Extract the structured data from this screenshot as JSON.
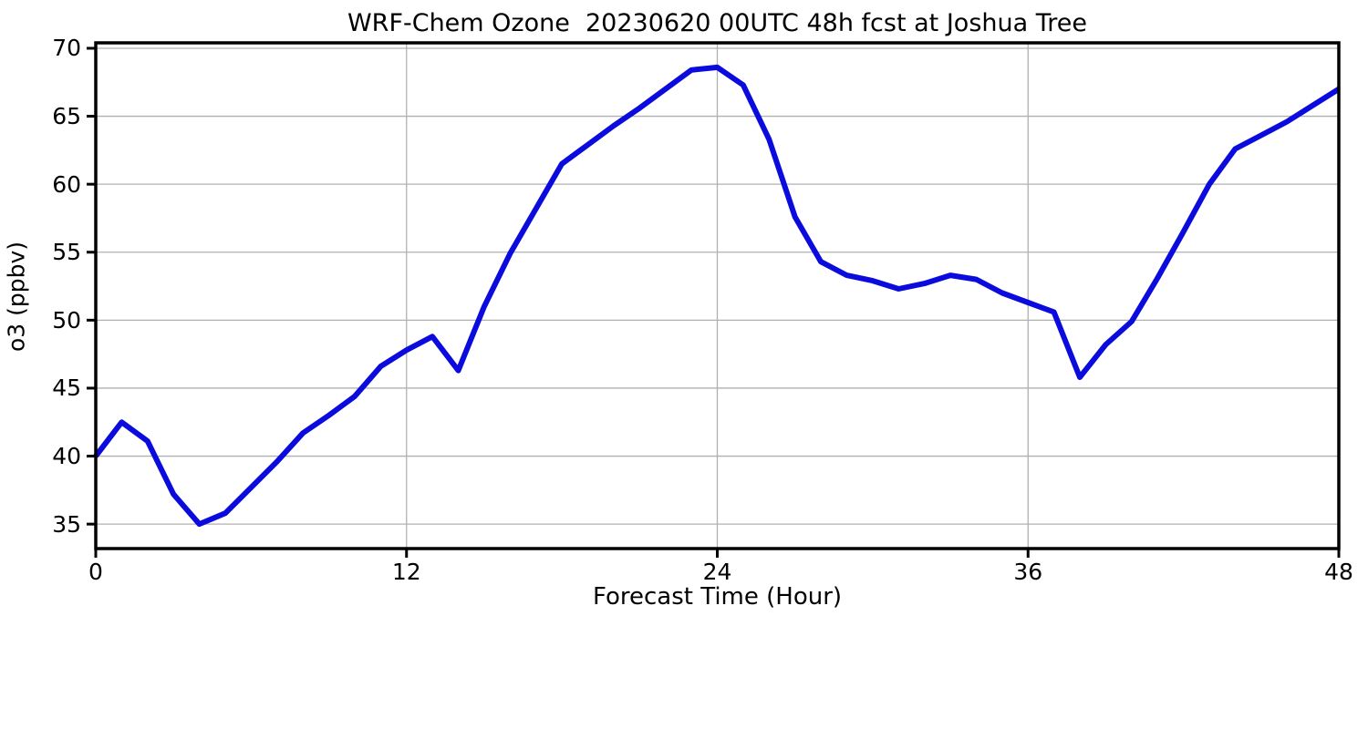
{
  "figure": {
    "title": "WRF-Chem Ozone  20230620 00UTC 48h fcst at Joshua Tree",
    "xlabel": "Forecast Time (Hour)",
    "ylabel": "o3 (ppbv)"
  },
  "chart_data": {
    "type": "line",
    "title": "WRF-Chem Ozone  20230620 00UTC 48h fcst at Joshua Tree",
    "xlabel": "Forecast Time (Hour)",
    "ylabel": "o3 (ppbv)",
    "series": [
      {
        "name": "o3 forecast",
        "x": [
          0,
          1,
          2,
          3,
          4,
          5,
          6,
          7,
          8,
          9,
          10,
          11,
          12,
          13,
          14,
          15,
          16,
          17,
          18,
          19,
          20,
          21,
          22,
          23,
          24,
          25,
          26,
          27,
          28,
          29,
          30,
          31,
          32,
          33,
          34,
          35,
          36,
          37,
          38,
          39,
          40,
          41,
          42,
          43,
          44,
          45,
          46,
          47,
          48
        ],
        "y": [
          40.0,
          42.5,
          41.1,
          37.2,
          35.0,
          35.8,
          37.7,
          39.6,
          41.7,
          43.0,
          44.4,
          46.6,
          47.8,
          48.8,
          46.3,
          51.0,
          54.9,
          58.2,
          61.5,
          62.9,
          64.3,
          65.6,
          67.0,
          68.4,
          68.6,
          67.3,
          63.3,
          57.6,
          54.3,
          53.3,
          52.9,
          52.3,
          52.7,
          53.3,
          53.0,
          52.0,
          51.3,
          50.6,
          45.8,
          48.2,
          49.9,
          53.1,
          56.5,
          60.0,
          62.6,
          63.6,
          64.6,
          65.8,
          67.0
        ]
      }
    ],
    "xticks": [
      0,
      12,
      24,
      36,
      48
    ],
    "yticks": [
      35,
      40,
      45,
      50,
      55,
      60,
      65,
      70
    ],
    "xlim": [
      0,
      48
    ],
    "ylim": [
      33.2,
      70.4
    ],
    "grid": true,
    "grid_color": "#b0b0b0",
    "line_color": "#0b0bdd",
    "line_width": 6,
    "spine_color": "#000000",
    "legend": "none"
  }
}
